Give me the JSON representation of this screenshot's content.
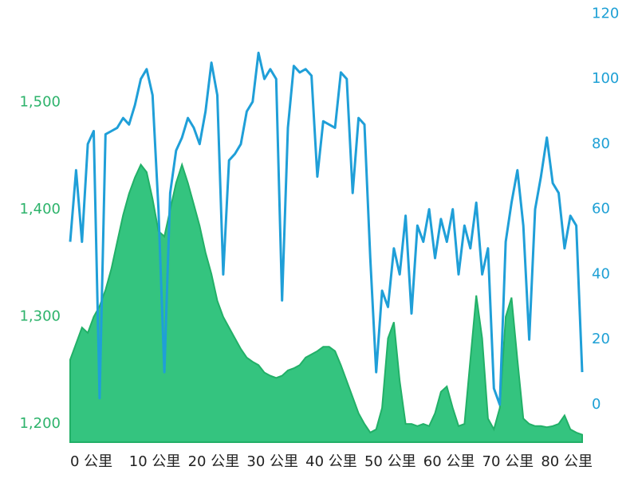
{
  "chart_data": {
    "type": "area-line",
    "x": [
      0,
      1,
      2,
      3,
      4,
      5,
      6,
      7,
      8,
      9,
      10,
      11,
      12,
      13,
      14,
      15,
      16,
      17,
      18,
      19,
      20,
      21,
      22,
      23,
      24,
      25,
      26,
      27,
      28,
      29,
      30,
      31,
      32,
      33,
      34,
      35,
      36,
      37,
      38,
      39,
      40,
      41,
      42,
      43,
      44,
      45,
      46,
      47,
      48,
      49,
      50,
      51,
      52,
      53,
      54,
      55,
      56,
      57,
      58,
      59,
      60,
      61,
      62,
      63,
      64,
      65,
      66,
      67,
      68,
      69,
      70,
      71,
      72,
      73,
      74,
      75,
      76,
      77,
      78,
      79,
      80,
      81,
      82,
      83,
      84,
      85,
      86,
      87
    ],
    "series": [
      {
        "color": "#34c47f",
        "kind": "area",
        "axis": "y",
        "values": [
          1260,
          1275,
          1290,
          1285,
          1300,
          1310,
          1325,
          1345,
          1370,
          1395,
          1415,
          1430,
          1442,
          1435,
          1410,
          1380,
          1375,
          1400,
          1425,
          1442,
          1425,
          1405,
          1385,
          1360,
          1340,
          1315,
          1300,
          1290,
          1280,
          1270,
          1262,
          1258,
          1255,
          1248,
          1245,
          1243,
          1245,
          1250,
          1252,
          1255,
          1262,
          1265,
          1268,
          1272,
          1272,
          1268,
          1255,
          1240,
          1225,
          1210,
          1200,
          1192,
          1195,
          1215,
          1280,
          1295,
          1240,
          1200,
          1200,
          1198,
          1200,
          1198,
          1210,
          1230,
          1235,
          1215,
          1198,
          1200,
          1260,
          1320,
          1280,
          1205,
          1195,
          1215,
          1300,
          1318,
          1260,
          1205,
          1200,
          1198,
          1198,
          1197,
          1198,
          1200,
          1208,
          1195,
          1192,
          1190
        ]
      },
      {
        "color": "#1f9fd8",
        "kind": "line",
        "axis": "y2",
        "values": [
          50,
          72,
          50,
          80,
          84,
          2,
          83,
          84,
          85,
          88,
          86,
          92,
          100,
          103,
          95,
          60,
          10,
          65,
          78,
          82,
          88,
          85,
          80,
          90,
          105,
          95,
          40,
          75,
          77,
          80,
          90,
          93,
          108,
          100,
          103,
          100,
          32,
          85,
          104,
          102,
          103,
          101,
          70,
          87,
          86,
          85,
          102,
          100,
          65,
          88,
          86,
          45,
          10,
          35,
          30,
          48,
          40,
          58,
          28,
          55,
          50,
          60,
          45,
          57,
          50,
          60,
          40,
          55,
          48,
          62,
          40,
          48,
          5,
          0,
          50,
          62,
          72,
          55,
          20,
          60,
          70,
          82,
          68,
          65,
          48,
          58,
          55,
          10
        ]
      }
    ],
    "xlim": [
      0,
      87
    ],
    "xticks": [
      {
        "value": 0,
        "label": "0 公里"
      },
      {
        "value": 10,
        "label": "10 公里"
      },
      {
        "value": 20,
        "label": "20 公里"
      },
      {
        "value": 30,
        "label": "30 公里"
      },
      {
        "value": 40,
        "label": "40 公里"
      },
      {
        "value": 50,
        "label": "50 公里"
      },
      {
        "value": 60,
        "label": "60 公里"
      },
      {
        "value": 70,
        "label": "70 公里"
      },
      {
        "value": 80,
        "label": "80 公里"
      }
    ],
    "ylim": [
      1183,
      1592
    ],
    "yticks": [
      {
        "value": 1200,
        "label": "1,200"
      },
      {
        "value": 1300,
        "label": "1,300"
      },
      {
        "value": 1400,
        "label": "1,400"
      },
      {
        "value": 1500,
        "label": "1,500"
      }
    ],
    "y2lim": [
      -11.5,
      123
    ],
    "y2ticks": [
      0,
      20,
      40,
      60,
      80,
      100,
      120
    ],
    "grid": false
  }
}
